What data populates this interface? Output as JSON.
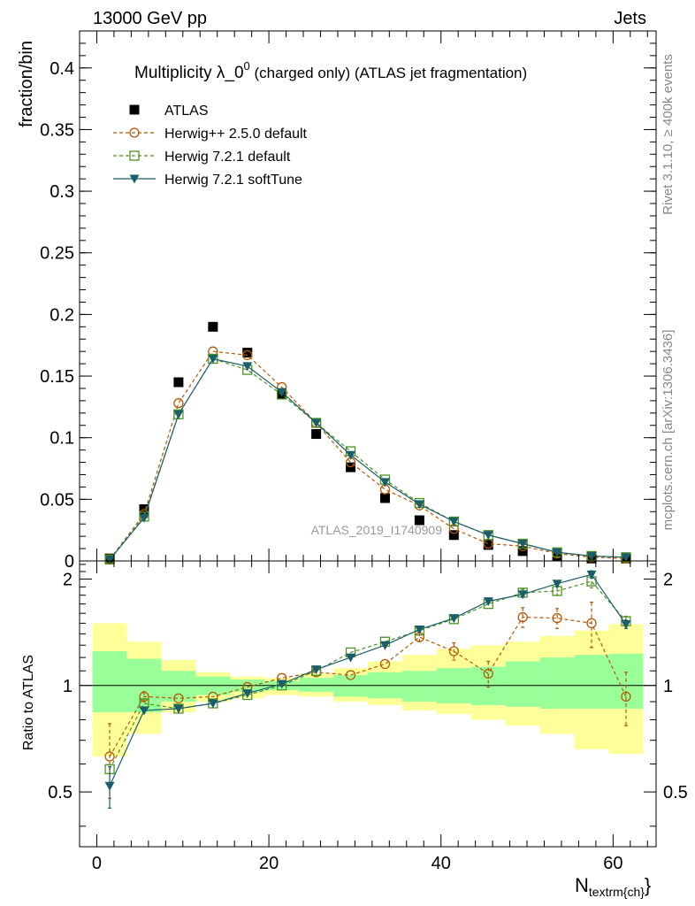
{
  "header": {
    "left": "13000 GeV pp",
    "right": "Jets"
  },
  "side": {
    "rivet": "Rivet 3.1.10, ≥ 400k events",
    "mcplots": "mcplots.cern.ch [arXiv:1306.3436]"
  },
  "watermark": "ATLAS_2019_I1740909",
  "chart_data": [
    {
      "type": "scatter",
      "panel": "main",
      "title": "Multiplicity λ_0",
      "title_sup": "0",
      "title_suffix": " (charged only) (ATLAS jet fragmentation)",
      "xlabel": "N",
      "xlabel_sub": "textrm{ch}",
      "ylabel": "fraction/bin",
      "xlim": [
        -2,
        65
      ],
      "ylim": [
        0,
        0.43
      ],
      "yticks": [
        0,
        0.05,
        0.1,
        0.15,
        0.2,
        0.25,
        0.3,
        0.35,
        0.4
      ],
      "ytick_labels": [
        "0",
        "0.05",
        "0.1",
        "0.15",
        "0.2",
        "0.25",
        "0.3",
        "0.35",
        "0.4"
      ],
      "x": [
        1.5,
        5.5,
        9.5,
        13.5,
        17.5,
        21.5,
        25.5,
        29.5,
        33.5,
        37.5,
        41.5,
        45.5,
        49.5,
        53.5,
        57.5,
        61.5
      ],
      "series": [
        {
          "name": "ATLAS",
          "color": "#000000",
          "marker": "square-filled",
          "line": "none",
          "values": [
            0.002,
            0.042,
            0.145,
            0.19,
            0.169,
            0.135,
            0.103,
            0.076,
            0.051,
            0.033,
            0.021,
            0.013,
            0.008,
            0.004,
            0.002,
            0.002
          ]
        },
        {
          "name": "Herwig++ 2.5.0 default",
          "color": "#b35806",
          "marker": "circle-open",
          "line": "dashed",
          "values": [
            0.0013,
            0.038,
            0.128,
            0.17,
            0.167,
            0.141,
            0.112,
            0.08,
            0.058,
            0.045,
            0.026,
            0.014,
            0.012,
            0.006,
            0.003,
            0.002
          ]
        },
        {
          "name": "Herwig 7.2.1 default",
          "color": "#4d9221",
          "marker": "square-open",
          "line": "dashed",
          "values": [
            0.0012,
            0.036,
            0.119,
            0.164,
            0.155,
            0.135,
            0.112,
            0.089,
            0.066,
            0.047,
            0.032,
            0.021,
            0.014,
            0.007,
            0.004,
            0.003
          ]
        },
        {
          "name": "Herwig 7.2.1 softTune",
          "color": "#1b5e6b",
          "marker": "triangle-down-filled",
          "line": "solid",
          "values": [
            0.001,
            0.035,
            0.119,
            0.164,
            0.158,
            0.137,
            0.112,
            0.086,
            0.064,
            0.046,
            0.032,
            0.021,
            0.014,
            0.007,
            0.004,
            0.003
          ]
        }
      ]
    },
    {
      "type": "scatter",
      "panel": "ratio",
      "ylabel": "Ratio to ATLAS",
      "xlabel": "N",
      "xlabel_sub": "textrm{ch}",
      "xlim": [
        -2,
        65
      ],
      "ylim": [
        0.35,
        2.25
      ],
      "xticks": [
        0,
        20,
        40,
        60
      ],
      "xtick_labels": [
        "0",
        "20",
        "40",
        "60"
      ],
      "yticks": [
        0.5,
        1,
        2
      ],
      "ytick_labels": [
        "0.5",
        "1",
        "2"
      ],
      "x": [
        1.5,
        5.5,
        9.5,
        13.5,
        17.5,
        21.5,
        25.5,
        29.5,
        33.5,
        37.5,
        41.5,
        45.5,
        49.5,
        53.5,
        57.5,
        61.5
      ],
      "bin_edges": [
        -0.5,
        3.5,
        7.5,
        11.5,
        15.5,
        19.5,
        23.5,
        27.5,
        31.5,
        35.5,
        39.5,
        43.5,
        47.5,
        51.5,
        55.5,
        59.5,
        63.5
      ],
      "band_inner": {
        "color": "#99ff99",
        "low": [
          0.84,
          0.84,
          0.9,
          0.94,
          0.96,
          0.97,
          0.96,
          0.93,
          0.92,
          0.9,
          0.89,
          0.88,
          0.87,
          0.86,
          0.86,
          0.86
        ],
        "high": [
          1.25,
          1.19,
          1.1,
          1.06,
          1.04,
          1.03,
          1.05,
          1.07,
          1.09,
          1.1,
          1.12,
          1.13,
          1.17,
          1.2,
          1.22,
          1.23
        ]
      },
      "band_outer": {
        "color": "#ffff99",
        "low": [
          0.63,
          0.73,
          0.84,
          0.9,
          0.92,
          0.94,
          0.93,
          0.9,
          0.88,
          0.85,
          0.83,
          0.8,
          0.77,
          0.73,
          0.66,
          0.64
        ],
        "high": [
          1.5,
          1.33,
          1.18,
          1.09,
          1.06,
          1.05,
          1.08,
          1.12,
          1.17,
          1.22,
          1.27,
          1.3,
          1.33,
          1.38,
          1.43,
          1.49
        ]
      },
      "series": [
        {
          "name": "Herwig++ 2.5.0 default",
          "color": "#b35806",
          "marker": "circle-open",
          "line": "dashed",
          "values": [
            0.63,
            0.93,
            0.92,
            0.93,
            0.99,
            1.05,
            1.09,
            1.07,
            1.15,
            1.37,
            1.25,
            1.08,
            1.56,
            1.55,
            1.5,
            0.93
          ],
          "errors": [
            0.15,
            0.03,
            0,
            0,
            0,
            0,
            0,
            0,
            0,
            0.04,
            0.07,
            0.09,
            0.1,
            0.1,
            0.22,
            0.16
          ]
        },
        {
          "name": "Herwig 7.2.1 default",
          "color": "#4d9221",
          "marker": "square-open",
          "line": "dashed",
          "values": [
            0.58,
            0.89,
            0.86,
            0.89,
            0.94,
            1.0,
            1.1,
            1.24,
            1.33,
            1.43,
            1.54,
            1.7,
            1.83,
            1.85,
            1.97,
            1.52
          ],
          "errors": [
            0,
            0,
            0,
            0,
            0,
            0,
            0,
            0,
            0,
            0,
            0,
            0,
            0.04,
            0.05,
            0.08,
            0.05
          ]
        },
        {
          "name": "Herwig 7.2.1 softTune",
          "color": "#1b5e6b",
          "marker": "triangle-down-filled",
          "line": "solid",
          "values": [
            0.52,
            0.85,
            0.86,
            0.89,
            0.95,
            1.01,
            1.11,
            1.2,
            1.3,
            1.44,
            1.55,
            1.73,
            1.81,
            1.94,
            2.06,
            1.49
          ],
          "errors": [
            0.07,
            0,
            0,
            0,
            0,
            0,
            0,
            0,
            0,
            0,
            0,
            0,
            0.03,
            0.03,
            0.05,
            0.04
          ]
        }
      ]
    }
  ]
}
